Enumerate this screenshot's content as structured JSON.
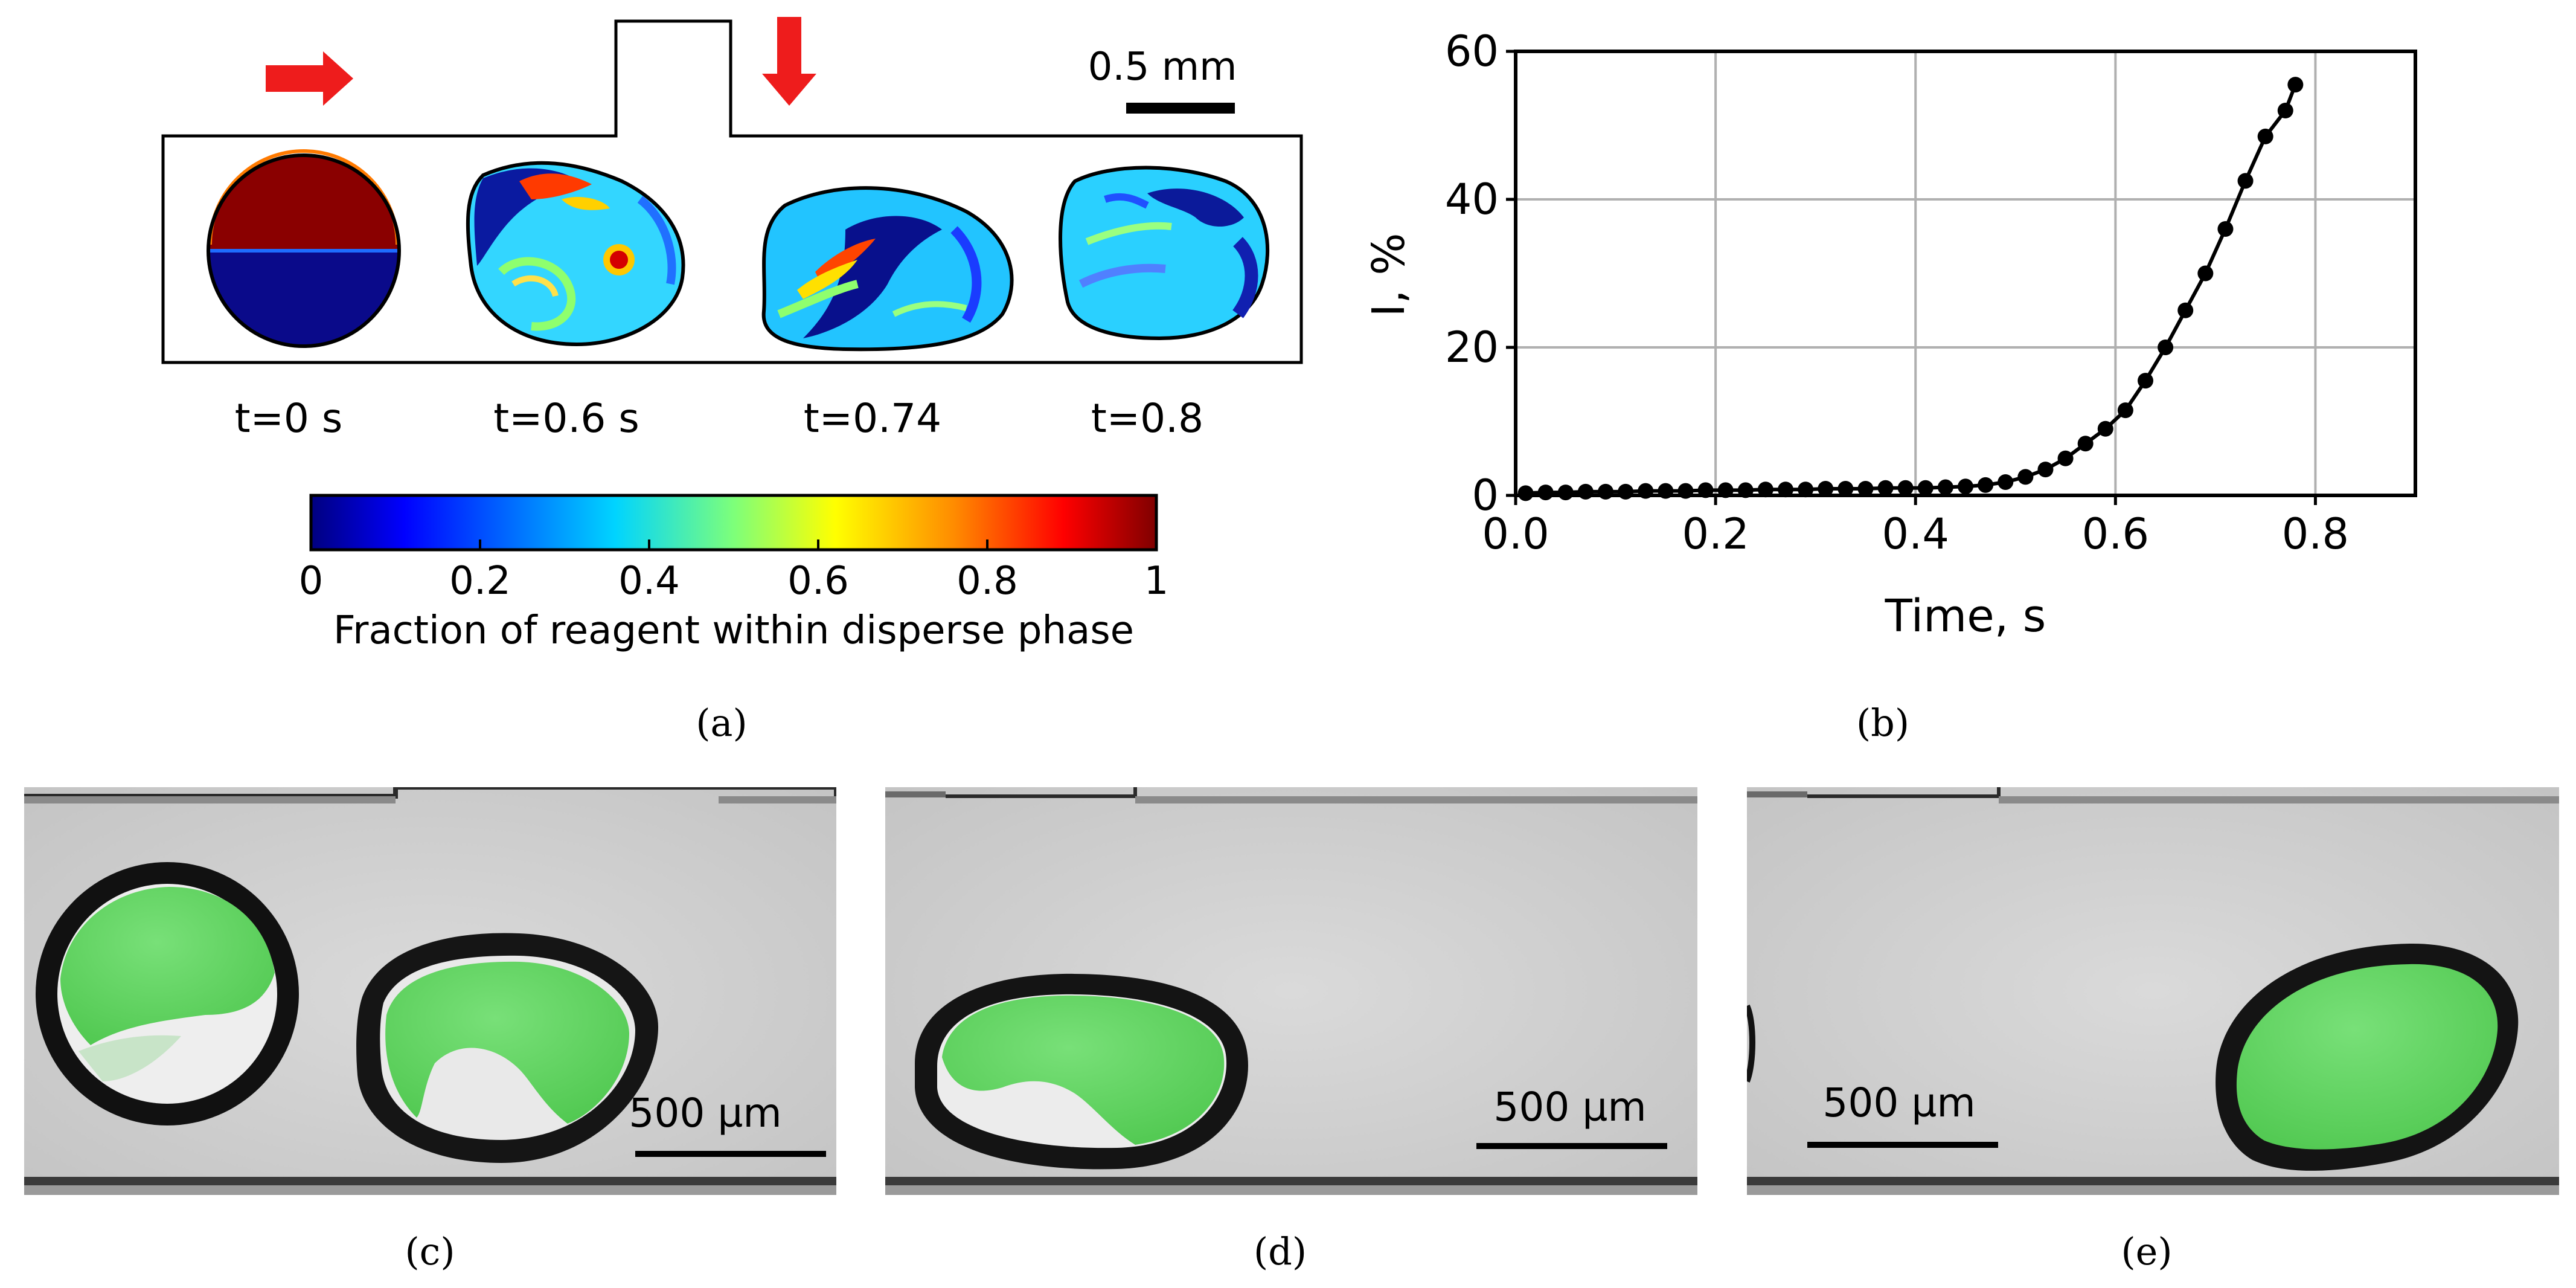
{
  "panel_a": {
    "scale_label": "0.5 mm",
    "time_labels": [
      "t=0 s",
      "t=0.6 s",
      "t=0.74",
      "t=0.8"
    ],
    "colorbar": {
      "ticks": [
        "0",
        "0.2",
        "0.4",
        "0.6",
        "0.8",
        "1"
      ],
      "label": "Fraction of reagent within disperse phase"
    },
    "caption": "(a)"
  },
  "panel_b": {
    "caption": "(b)"
  },
  "chart_data": {
    "type": "line",
    "xlabel": "Time, s",
    "ylabel": "I, %",
    "xlim": [
      0,
      0.9
    ],
    "ylim": [
      0,
      60
    ],
    "xticks": [
      "0.0",
      "0.2",
      "0.4",
      "0.6",
      "0.8"
    ],
    "yticks": [
      "0",
      "20",
      "40",
      "60"
    ],
    "grid": true,
    "series": [
      {
        "marker": "circle",
        "x": [
          0.01,
          0.03,
          0.05,
          0.07,
          0.09,
          0.11,
          0.13,
          0.15,
          0.17,
          0.19,
          0.21,
          0.23,
          0.25,
          0.27,
          0.29,
          0.31,
          0.33,
          0.35,
          0.37,
          0.39,
          0.41,
          0.43,
          0.45,
          0.47,
          0.49,
          0.51,
          0.53,
          0.55,
          0.57,
          0.59,
          0.61,
          0.63,
          0.65,
          0.67,
          0.69,
          0.71,
          0.73,
          0.75,
          0.77,
          0.78
        ],
        "y": [
          0.3,
          0.4,
          0.4,
          0.5,
          0.5,
          0.5,
          0.6,
          0.6,
          0.6,
          0.7,
          0.7,
          0.7,
          0.8,
          0.8,
          0.8,
          0.9,
          0.9,
          0.9,
          1.0,
          1.0,
          1.0,
          1.1,
          1.2,
          1.4,
          1.8,
          2.5,
          3.5,
          5.0,
          7.0,
          9.0,
          11.5,
          15.5,
          20.0,
          25.0,
          30.0,
          36.0,
          42.5,
          48.5,
          52.0,
          55.5
        ]
      }
    ]
  },
  "photos": [
    {
      "scale_label": "500 µm",
      "caption": "(c)"
    },
    {
      "scale_label": "500 µm",
      "caption": "(d)"
    },
    {
      "scale_label": "500 µm",
      "caption": "(e)"
    }
  ],
  "colors": {
    "arrow": "#ee1c1c",
    "curve": "#000000",
    "grid": "#b0b0b0",
    "droplet_green": "#5fd45f",
    "photo_bg": "#cfcfcf"
  }
}
